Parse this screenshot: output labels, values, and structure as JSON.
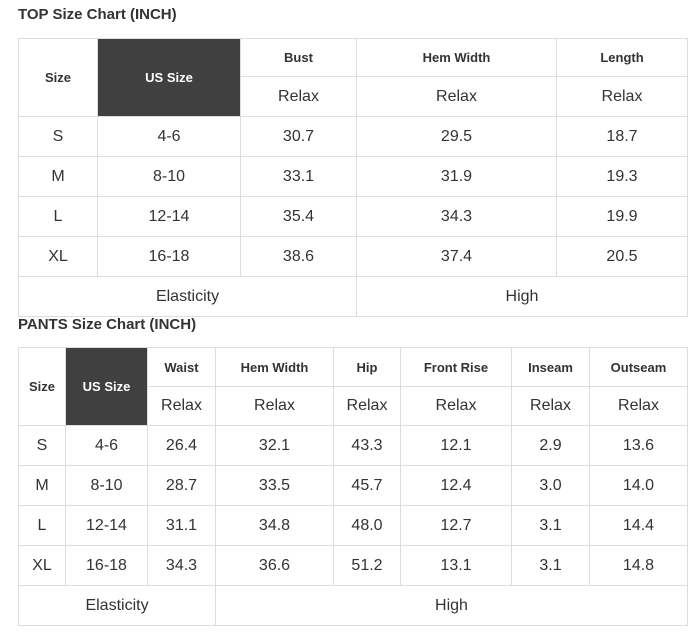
{
  "top": {
    "title": "TOP Size Chart (INCH)",
    "headers": [
      "Size",
      "US Size",
      "Bust",
      "Hem Width",
      "Length"
    ],
    "fit": [
      "Relax",
      "Relax",
      "Relax"
    ],
    "rows": [
      [
        "S",
        "4-6",
        "30.7",
        "29.5",
        "18.7"
      ],
      [
        "M",
        "8-10",
        "33.1",
        "31.9",
        "19.3"
      ],
      [
        "L",
        "12-14",
        "35.4",
        "34.3",
        "19.9"
      ],
      [
        "XL",
        "16-18",
        "38.6",
        "37.4",
        "20.5"
      ]
    ],
    "footer": [
      "Elasticity",
      "High"
    ]
  },
  "pants": {
    "title": "PANTS Size Chart (INCH)",
    "headers": [
      "Size",
      "US Size",
      "Waist",
      "Hem Width",
      "Hip",
      "Front Rise",
      "Inseam",
      "Outseam"
    ],
    "fit": [
      "Relax",
      "Relax",
      "Relax",
      "Relax",
      "Relax",
      "Relax"
    ],
    "rows": [
      [
        "S",
        "4-6",
        "26.4",
        "32.1",
        "43.3",
        "12.1",
        "2.9",
        "13.6"
      ],
      [
        "M",
        "8-10",
        "28.7",
        "33.5",
        "45.7",
        "12.4",
        "3.0",
        "14.0"
      ],
      [
        "L",
        "12-14",
        "31.1",
        "34.8",
        "48.0",
        "12.7",
        "3.1",
        "14.4"
      ],
      [
        "XL",
        "16-18",
        "34.3",
        "36.6",
        "51.2",
        "13.1",
        "3.1",
        "14.8"
      ]
    ],
    "footer": [
      "Elasticity",
      "High"
    ]
  }
}
